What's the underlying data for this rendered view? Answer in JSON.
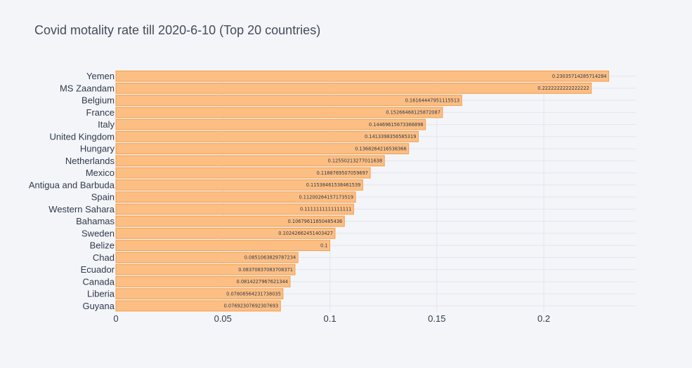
{
  "chart_data": {
    "type": "bar",
    "orientation": "horizontal",
    "title": "Covid motality rate till 2020-6-10 (Top 20 countries)",
    "xlabel": "",
    "ylabel": "",
    "xlim": [
      0,
      0.243
    ],
    "x_ticks": [
      0,
      0.05,
      0.1,
      0.15,
      0.2
    ],
    "x_tick_labels": [
      "0",
      "0.05",
      "0.1",
      "0.15",
      "0.2"
    ],
    "grid": true,
    "bar_color": "#fcbe83",
    "bar_edge_color": "#f29f4e",
    "background_color": "#f4f5f9",
    "categories": [
      "Yemen",
      "MS Zaandam",
      "Belgium",
      "France",
      "Italy",
      "United Kingdom",
      "Hungary",
      "Netherlands",
      "Mexico",
      "Antigua and Barbuda",
      "Spain",
      "Western Sahara",
      "Bahamas",
      "Sweden",
      "Belize",
      "Chad",
      "Ecuador",
      "Canada",
      "Liberia",
      "Guyana"
    ],
    "values": [
      0.23035714285714284,
      0.2222222222222222,
      0.16164447951115513,
      0.15266468125872087,
      0.14469615673366898,
      0.1413398356585319,
      0.1368264216538366,
      0.12550213277011638,
      0.1188769507059697,
      0.11538461538461539,
      0.11200264157173519,
      0.1111111111111111,
      0.10679611650485436,
      0.10242662451403427,
      0.1,
      0.0851063829787234,
      0.08370837083708371,
      0.0814227967621344,
      0.07808564231738035,
      0.07692307692307693
    ],
    "data_labels": [
      "0.23035714285714284",
      "0.2222222222222222",
      "0.16164447951115513",
      "0.15266468125872087",
      "0.14469615673366898",
      "0.1413398356585319",
      "0.1368264216538366",
      "0.12550213277011638",
      "0.1188769507059697",
      "0.11538461538461539",
      "0.11200264157173519",
      "0.1111111111111111",
      "0.10679611650485436",
      "0.10242662451403427",
      "0.1",
      "0.0851063829787234",
      "0.08370837083708371",
      "0.0814227967621344",
      "0.07808564231738035",
      "0.07692307692307693"
    ]
  }
}
